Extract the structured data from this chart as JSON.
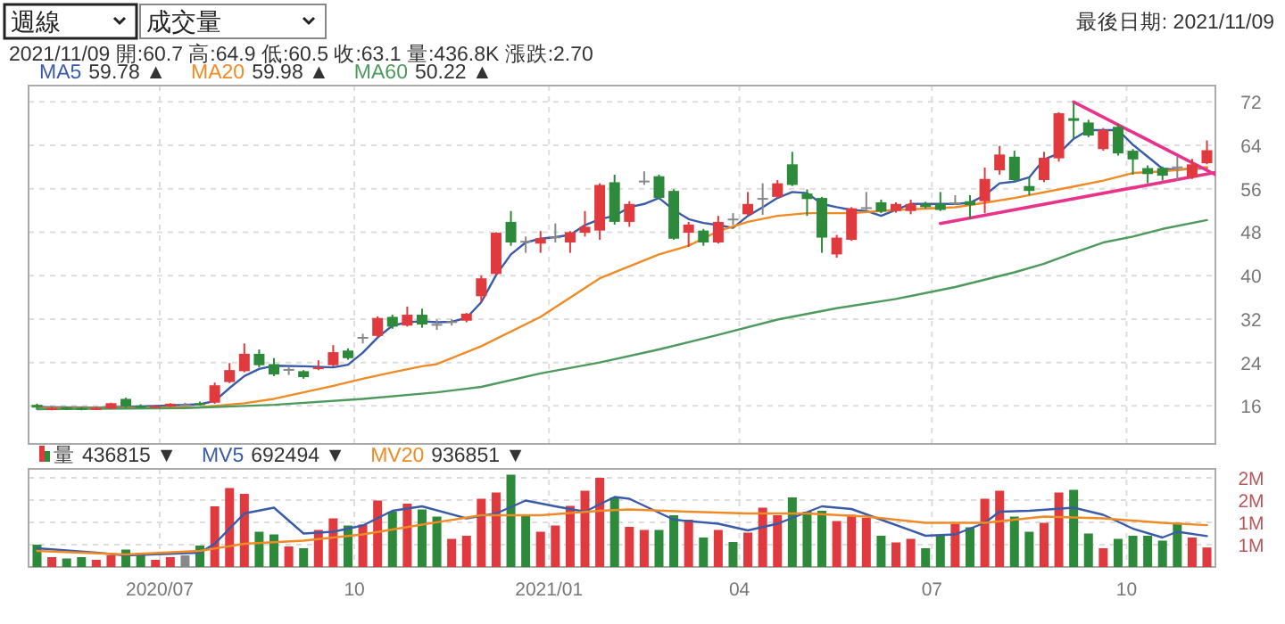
{
  "chart_data": [
    {
      "type": "candlestick",
      "annotations": [
        "週線",
        "成交量",
        "最後日期: 2021/11/09",
        "2021/11/09 開:60.7 高:64.9 低:60.5 收:63.1 量:436.8K 漲跌:2.70",
        "59.78 ▲",
        "59.98 ▲",
        "50.22 ▲"
      ],
      "x": [
        "2020-05-04",
        "2020-05-11",
        "2020-05-18",
        "2020-05-25",
        "2020-06-01",
        "2020-06-08",
        "2020-06-15",
        "2020-06-22",
        "2020-06-29",
        "2020-07-06",
        "2020-07-13",
        "2020-07-20",
        "2020-07-27",
        "2020-08-03",
        "2020-08-10",
        "2020-08-17",
        "2020-08-24",
        "2020-08-31",
        "2020-09-07",
        "2020-09-14",
        "2020-09-21",
        "2020-09-28",
        "2020-10-05",
        "2020-10-12",
        "2020-10-19",
        "2020-10-26",
        "2020-11-02",
        "2020-11-09",
        "2020-11-16",
        "2020-11-23",
        "2020-11-30",
        "2020-12-07",
        "2020-12-14",
        "2020-12-21",
        "2020-12-28",
        "2021-01-04",
        "2021-01-11",
        "2021-01-18",
        "2021-01-25",
        "2021-02-01",
        "2021-02-08",
        "2021-02-15",
        "2021-02-22",
        "2021-03-01",
        "2021-03-08",
        "2021-03-15",
        "2021-03-22",
        "2021-03-29",
        "2021-04-05",
        "2021-04-12",
        "2021-04-19",
        "2021-04-26",
        "2021-05-03",
        "2021-05-10",
        "2021-05-17",
        "2021-05-24",
        "2021-05-31",
        "2021-06-07",
        "2021-06-14",
        "2021-06-21",
        "2021-06-28",
        "2021-07-05",
        "2021-07-12",
        "2021-07-19",
        "2021-07-26",
        "2021-08-02",
        "2021-08-09",
        "2021-08-16",
        "2021-08-23",
        "2021-08-30",
        "2021-09-06",
        "2021-09-13",
        "2021-09-20",
        "2021-09-27",
        "2021-10-04",
        "2021-10-11",
        "2021-10-18",
        "2021-10-25",
        "2021-11-01",
        "2021-11-08"
      ],
      "ohlc": [
        [
          16.2,
          16.4,
          15.5,
          15.7
        ],
        [
          15.4,
          15.8,
          15.2,
          15.6
        ],
        [
          15.7,
          15.9,
          15.3,
          15.5
        ],
        [
          15.6,
          15.8,
          15.2,
          15.4
        ],
        [
          15.4,
          15.8,
          15.3,
          15.6
        ],
        [
          15.5,
          16.6,
          15.4,
          16.5
        ],
        [
          17.3,
          17.5,
          15.7,
          15.9
        ],
        [
          16.0,
          16.3,
          15.6,
          15.8
        ],
        [
          15.8,
          16.2,
          15.6,
          16.0
        ],
        [
          15.9,
          16.5,
          15.8,
          16.4
        ],
        [
          16.3,
          16.6,
          16.0,
          16.3
        ],
        [
          16.5,
          16.8,
          16.1,
          16.3
        ],
        [
          16.6,
          20.3,
          16.4,
          19.8
        ],
        [
          20.4,
          23.9,
          20.2,
          22.6
        ],
        [
          22.4,
          27.5,
          22.2,
          25.6
        ],
        [
          25.6,
          26.4,
          23.1,
          23.5
        ],
        [
          23.7,
          24.8,
          21.5,
          21.8
        ],
        [
          22.7,
          23.1,
          21.7,
          22.8
        ],
        [
          22.4,
          22.6,
          21.0,
          21.3
        ],
        [
          22.9,
          24.4,
          22.6,
          23.1
        ],
        [
          23.5,
          27.2,
          23.3,
          25.9
        ],
        [
          26.2,
          26.6,
          24.5,
          24.8
        ],
        [
          28.5,
          29.3,
          27.5,
          28.7
        ],
        [
          28.9,
          32.5,
          28.6,
          32.2
        ],
        [
          32.4,
          32.8,
          30.2,
          30.6
        ],
        [
          30.8,
          34.3,
          30.6,
          32.8
        ],
        [
          32.8,
          33.9,
          30.4,
          31.0
        ],
        [
          31.1,
          31.9,
          30.0,
          30.9
        ],
        [
          31.4,
          32.0,
          30.8,
          31.6
        ],
        [
          31.7,
          33.1,
          31.4,
          33.0
        ],
        [
          36.2,
          40.0,
          35.1,
          39.5
        ],
        [
          40.3,
          48.0,
          40.2,
          47.9
        ],
        [
          49.9,
          51.9,
          45.5,
          46.1
        ],
        [
          46.4,
          47.2,
          44.2,
          46.2
        ],
        [
          45.9,
          48.2,
          44.2,
          46.9
        ],
        [
          47.1,
          49.6,
          46.1,
          47.2
        ],
        [
          46.1,
          48.2,
          44.2,
          48.0
        ],
        [
          47.9,
          51.9,
          47.2,
          49.0
        ],
        [
          48.3,
          57.0,
          46.6,
          56.7
        ],
        [
          57.2,
          58.6,
          49.4,
          49.9
        ],
        [
          49.9,
          53.7,
          49.0,
          53.2
        ],
        [
          57.4,
          59.2,
          56.7,
          57.5
        ],
        [
          58.3,
          58.6,
          54.1,
          54.3
        ],
        [
          55.6,
          55.9,
          46.6,
          46.8
        ],
        [
          47.9,
          49.9,
          45.3,
          49.4
        ],
        [
          48.3,
          48.6,
          45.5,
          46.1
        ],
        [
          46.1,
          51.0,
          45.9,
          49.9
        ],
        [
          50.5,
          51.5,
          49.3,
          50.4
        ],
        [
          51.3,
          55.4,
          51.0,
          53.2
        ],
        [
          54.2,
          57.0,
          51.2,
          54.3
        ],
        [
          54.5,
          57.6,
          54.3,
          57.0
        ],
        [
          60.5,
          62.8,
          56.5,
          56.7
        ],
        [
          55.1,
          55.9,
          51.0,
          54.1
        ],
        [
          54.3,
          54.5,
          44.2,
          47.0
        ],
        [
          43.9,
          47.5,
          43.3,
          47.0
        ],
        [
          46.6,
          52.6,
          46.4,
          52.4
        ],
        [
          52.5,
          55.4,
          52.1,
          52.6
        ],
        [
          53.5,
          54.0,
          51.5,
          51.8
        ],
        [
          51.9,
          53.5,
          51.6,
          53.2
        ],
        [
          51.9,
          54.0,
          51.3,
          53.2
        ],
        [
          53.2,
          53.6,
          52.4,
          52.6
        ],
        [
          53.2,
          55.4,
          51.9,
          52.1
        ],
        [
          53.4,
          54.8,
          53.0,
          53.5
        ],
        [
          53.7,
          54.8,
          50.4,
          53.0
        ],
        [
          53.7,
          59.9,
          51.5,
          57.8
        ],
        [
          59.4,
          63.9,
          58.6,
          62.3
        ],
        [
          61.9,
          63.0,
          57.2,
          57.6
        ],
        [
          56.5,
          58.1,
          54.8,
          55.6
        ],
        [
          57.6,
          62.8,
          57.2,
          61.7
        ],
        [
          61.6,
          70.1,
          61.0,
          69.9
        ],
        [
          69.0,
          71.8,
          65.2,
          68.5
        ],
        [
          68.2,
          68.7,
          65.5,
          65.8
        ],
        [
          63.3,
          67.2,
          63.0,
          66.8
        ],
        [
          67.4,
          67.9,
          62.1,
          62.5
        ],
        [
          63.0,
          63.3,
          58.6,
          61.4
        ],
        [
          59.8,
          60.3,
          57.0,
          58.7
        ],
        [
          59.8,
          60.1,
          57.5,
          58.4
        ],
        [
          60.1,
          61.9,
          57.5,
          59.9
        ],
        [
          58.1,
          61.5,
          57.8,
          60.5
        ],
        [
          60.7,
          64.9,
          60.5,
          63.1
        ]
      ],
      "colors": [
        "#2c8a3a",
        "#e0393e",
        "#2c8a3a",
        "#2c8a3a",
        "#e0393e",
        "#e0393e",
        "#2c8a3a",
        "#2c8a3a",
        "#e0393e",
        "#e0393e",
        "#888888",
        "#2c8a3a",
        "#e0393e",
        "#e0393e",
        "#e0393e",
        "#2c8a3a",
        "#2c8a3a",
        "#888888",
        "#2c8a3a",
        "#e0393e",
        "#e0393e",
        "#2c8a3a",
        "#888888",
        "#e0393e",
        "#2c8a3a",
        "#e0393e",
        "#2c8a3a",
        "#888888",
        "#888888",
        "#e0393e",
        "#e0393e",
        "#e0393e",
        "#2c8a3a",
        "#888888",
        "#e0393e",
        "#888888",
        "#e0393e",
        "#e0393e",
        "#e0393e",
        "#2c8a3a",
        "#e0393e",
        "#888888",
        "#2c8a3a",
        "#2c8a3a",
        "#e0393e",
        "#2c8a3a",
        "#e0393e",
        "#888888",
        "#e0393e",
        "#888888",
        "#e0393e",
        "#2c8a3a",
        "#2c8a3a",
        "#2c8a3a",
        "#e0393e",
        "#e0393e",
        "#888888",
        "#2c8a3a",
        "#e0393e",
        "#e0393e",
        "#2c8a3a",
        "#2c8a3a",
        "#888888",
        "#2c8a3a",
        "#e0393e",
        "#e0393e",
        "#2c8a3a",
        "#2c8a3a",
        "#e0393e",
        "#e0393e",
        "#2c8a3a",
        "#2c8a3a",
        "#e0393e",
        "#2c8a3a",
        "#2c8a3a",
        "#2c8a3a",
        "#2c8a3a",
        "#888888",
        "#e0393e",
        "#e0393e"
      ],
      "series": [
        {
          "name": "MA5",
          "type": "line",
          "color": "#3a5ba8",
          "x": [
            "2020-05-04",
            "2020-06-01",
            "2020-06-29",
            "2020-07-20",
            "2020-07-27",
            "2020-08-03",
            "2020-08-10",
            "2020-08-17",
            "2020-08-24",
            "2020-09-07",
            "2020-09-21",
            "2020-09-28",
            "2020-10-05",
            "2020-10-12",
            "2020-10-19",
            "2020-10-26",
            "2020-11-02",
            "2020-11-09",
            "2020-11-16",
            "2020-11-23",
            "2020-11-30",
            "2020-12-07",
            "2020-12-14",
            "2020-12-21",
            "2020-12-28",
            "2021-01-04",
            "2021-01-11",
            "2021-01-18",
            "2021-01-25",
            "2021-02-01",
            "2021-02-08",
            "2021-02-15",
            "2021-02-22",
            "2021-03-01",
            "2021-03-08",
            "2021-03-15",
            "2021-03-22",
            "2021-03-29",
            "2021-04-05",
            "2021-04-12",
            "2021-04-19",
            "2021-04-26",
            "2021-05-03",
            "2021-05-10",
            "2021-05-17",
            "2021-05-24",
            "2021-05-31",
            "2021-06-07",
            "2021-06-14",
            "2021-06-21",
            "2021-06-28",
            "2021-07-05",
            "2021-07-12",
            "2021-07-19",
            "2021-07-26",
            "2021-08-02",
            "2021-08-09",
            "2021-08-16",
            "2021-08-23",
            "2021-08-30",
            "2021-09-06",
            "2021-09-13",
            "2021-09-20",
            "2021-09-27",
            "2021-10-04",
            "2021-10-11",
            "2021-10-18",
            "2021-10-25",
            "2021-11-01",
            "2021-11-08"
          ],
          "values": [
            15.8,
            15.7,
            16.0,
            16.3,
            16.9,
            19.3,
            21.5,
            22.8,
            23.4,
            23.3,
            23.1,
            23.6,
            25.8,
            28.6,
            30.8,
            31.4,
            31.6,
            31.4,
            31.5,
            32.2,
            35.1,
            40.1,
            43.9,
            46.1,
            46.8,
            47.1,
            47.5,
            49.3,
            50.4,
            51.0,
            52.6,
            53.2,
            54.3,
            52.1,
            50.4,
            49.7,
            49.3,
            48.8,
            51.0,
            52.6,
            54.3,
            55.4,
            55.2,
            53.2,
            52.6,
            52.1,
            51.9,
            51.0,
            52.1,
            53.2,
            53.2,
            53.2,
            53.2,
            53.4,
            54.8,
            57.0,
            57.3,
            58.1,
            61.4,
            62.5,
            65.2,
            66.8,
            66.8,
            66.8,
            64.1,
            61.9,
            59.7,
            59.5,
            59.7,
            59.78
          ]
        },
        {
          "name": "MA20",
          "type": "line",
          "color": "#f08a24",
          "x": [
            "2020-05-04",
            "2020-06-01",
            "2020-06-29",
            "2020-07-20",
            "2020-07-27",
            "2020-08-10",
            "2020-08-24",
            "2020-09-07",
            "2020-09-21",
            "2020-10-05",
            "2020-10-19",
            "2020-11-02",
            "2020-11-09",
            "2020-11-30",
            "2020-12-28",
            "2021-01-25",
            "2021-02-22",
            "2021-03-08",
            "2021-03-22",
            "2021-04-05",
            "2021-04-19",
            "2021-05-03",
            "2021-05-24",
            "2021-06-14",
            "2021-07-12",
            "2021-07-26",
            "2021-08-09",
            "2021-09-06",
            "2021-09-20",
            "2021-10-04",
            "2021-10-18",
            "2021-11-08"
          ],
          "values": [
            15.6,
            15.6,
            15.7,
            15.8,
            16.0,
            16.5,
            17.3,
            18.5,
            19.7,
            21.0,
            22.2,
            23.3,
            23.7,
            27.0,
            32.4,
            39.5,
            43.9,
            45.5,
            48.2,
            49.9,
            51.0,
            51.5,
            51.5,
            52.1,
            52.6,
            53.4,
            54.3,
            56.4,
            57.5,
            58.9,
            59.2,
            59.98
          ]
        },
        {
          "name": "MA60",
          "type": "line",
          "color": "#4e9a5e",
          "x": [
            "2020-05-04",
            "2020-07-13",
            "2020-08-24",
            "2020-10-05",
            "2020-11-09",
            "2020-11-30",
            "2020-12-28",
            "2021-01-25",
            "2021-02-22",
            "2021-03-22",
            "2021-04-19",
            "2021-05-17",
            "2021-06-14",
            "2021-07-12",
            "2021-08-09",
            "2021-08-23",
            "2021-09-06",
            "2021-09-20",
            "2021-10-04",
            "2021-10-18",
            "2021-11-08"
          ],
          "values": [
            15.4,
            15.6,
            16.2,
            17.3,
            18.5,
            19.5,
            22.0,
            24.0,
            26.4,
            29.1,
            31.9,
            34.0,
            35.7,
            37.9,
            40.6,
            42.2,
            44.2,
            46.1,
            47.2,
            48.6,
            50.22
          ]
        },
        {
          "type": "line",
          "color": "#e8338a",
          "x": [
            "2021-09-06",
            "2021-11-12"
          ],
          "values": [
            72.0,
            58.6
          ]
        },
        {
          "type": "line",
          "color": "#e8338a",
          "x": [
            "2021-07-05",
            "2021-11-12"
          ],
          "values": [
            49.6,
            59.0
          ]
        }
      ],
      "xlim": [
        "2020-04-30",
        "2021-11-12"
      ],
      "ylim": [
        9,
        75
      ],
      "yticks": [
        16,
        24,
        32,
        40,
        48,
        56,
        64,
        72
      ],
      "xticks": [
        {
          "value": "2020-07-01",
          "label": null
        },
        {
          "value": "2020-10-01",
          "label": null
        },
        {
          "value": "2021-01-01",
          "label": null
        },
        {
          "value": "2021-04-01",
          "label": null
        },
        {
          "value": "2021-07-01",
          "label": null
        },
        {
          "value": "2021-10-01",
          "label": null
        }
      ],
      "grid": true,
      "legend": "top left",
      "tick_labels": "y"
    },
    {
      "type": "bar",
      "annotations": [
        "436815 ▼",
        "692494 ▼",
        "936851 ▼"
      ],
      "x": [
        "2020-05-04",
        "2020-05-11",
        "2020-05-18",
        "2020-05-25",
        "2020-06-01",
        "2020-06-08",
        "2020-06-15",
        "2020-06-22",
        "2020-06-29",
        "2020-07-06",
        "2020-07-13",
        "2020-07-20",
        "2020-07-27",
        "2020-08-03",
        "2020-08-10",
        "2020-08-17",
        "2020-08-24",
        "2020-08-31",
        "2020-09-07",
        "2020-09-14",
        "2020-09-21",
        "2020-09-28",
        "2020-10-05",
        "2020-10-12",
        "2020-10-19",
        "2020-10-26",
        "2020-11-02",
        "2020-11-09",
        "2020-11-16",
        "2020-11-23",
        "2020-11-30",
        "2020-12-07",
        "2020-12-14",
        "2020-12-21",
        "2020-12-28",
        "2021-01-04",
        "2021-01-11",
        "2021-01-18",
        "2021-01-25",
        "2021-02-01",
        "2021-02-08",
        "2021-02-15",
        "2021-02-22",
        "2021-03-01",
        "2021-03-08",
        "2021-03-15",
        "2021-03-22",
        "2021-03-29",
        "2021-04-05",
        "2021-04-12",
        "2021-04-19",
        "2021-04-26",
        "2021-05-03",
        "2021-05-10",
        "2021-05-17",
        "2021-05-24",
        "2021-05-31",
        "2021-06-07",
        "2021-06-14",
        "2021-06-21",
        "2021-06-28",
        "2021-07-05",
        "2021-07-12",
        "2021-07-19",
        "2021-07-26",
        "2021-08-02",
        "2021-08-09",
        "2021-08-16",
        "2021-08-23",
        "2021-08-30",
        "2021-09-06",
        "2021-09-13",
        "2021-09-20",
        "2021-09-27",
        "2021-10-04",
        "2021-10-11",
        "2021-10-18",
        "2021-10-25",
        "2021-11-01",
        "2021-11-08"
      ],
      "series": [
        {
          "name": "量",
          "values": [
            500000,
            220000,
            190000,
            220000,
            160000,
            260000,
            390000,
            320000,
            160000,
            220000,
            260000,
            480000,
            1360000,
            1770000,
            1640000,
            790000,
            730000,
            460000,
            420000,
            830000,
            1090000,
            930000,
            950000,
            1490000,
            1240000,
            1420000,
            1290000,
            1130000,
            630000,
            700000,
            1530000,
            1670000,
            2070000,
            1160000,
            790000,
            930000,
            1370000,
            1710000,
            2000000,
            1560000,
            900000,
            830000,
            830000,
            1160000,
            1060000,
            660000,
            830000,
            560000,
            770000,
            1330000,
            1160000,
            1560000,
            1240000,
            1260000,
            1030000,
            1170000,
            1100000,
            700000,
            550000,
            630000,
            420000,
            700000,
            970000,
            890000,
            1530000,
            1710000,
            1130000,
            790000,
            990000,
            1670000,
            1730000,
            750000,
            420000,
            630000,
            700000,
            700000,
            590000,
            990000,
            660000,
            436815
          ],
          "colors": [
            "#2c8a3a",
            "#e0393e",
            "#2c8a3a",
            "#2c8a3a",
            "#e0393e",
            "#e0393e",
            "#2c8a3a",
            "#2c8a3a",
            "#e0393e",
            "#e0393e",
            "#888888",
            "#2c8a3a",
            "#e0393e",
            "#e0393e",
            "#e0393e",
            "#2c8a3a",
            "#2c8a3a",
            "#e0393e",
            "#2c8a3a",
            "#e0393e",
            "#e0393e",
            "#2c8a3a",
            "#e0393e",
            "#e0393e",
            "#2c8a3a",
            "#e0393e",
            "#2c8a3a",
            "#2c8a3a",
            "#e0393e",
            "#e0393e",
            "#e0393e",
            "#e0393e",
            "#2c8a3a",
            "#2c8a3a",
            "#e0393e",
            "#e0393e",
            "#e0393e",
            "#e0393e",
            "#e0393e",
            "#2c8a3a",
            "#e0393e",
            "#e0393e",
            "#2c8a3a",
            "#2c8a3a",
            "#e0393e",
            "#2c8a3a",
            "#e0393e",
            "#2c8a3a",
            "#e0393e",
            "#e0393e",
            "#e0393e",
            "#2c8a3a",
            "#2c8a3a",
            "#2c8a3a",
            "#e0393e",
            "#e0393e",
            "#e0393e",
            "#2c8a3a",
            "#e0393e",
            "#e0393e",
            "#2c8a3a",
            "#2c8a3a",
            "#e0393e",
            "#2c8a3a",
            "#e0393e",
            "#e0393e",
            "#2c8a3a",
            "#2c8a3a",
            "#e0393e",
            "#e0393e",
            "#2c8a3a",
            "#2c8a3a",
            "#e0393e",
            "#2c8a3a",
            "#2c8a3a",
            "#2c8a3a",
            "#2c8a3a",
            "#2c8a3a",
            "#e0393e",
            "#e0393e"
          ]
        },
        {
          "name": "MV5",
          "type": "line",
          "color": "#3a5ba8",
          "x": [
            "2020-05-04",
            "2020-06-01",
            "2020-06-15",
            "2020-07-20",
            "2020-07-27",
            "2020-08-10",
            "2020-08-24",
            "2020-09-07",
            "2020-09-21",
            "2020-10-05",
            "2020-10-19",
            "2020-11-02",
            "2020-11-23",
            "2020-12-07",
            "2020-12-21",
            "2021-01-04",
            "2021-01-18",
            "2021-02-01",
            "2021-02-08",
            "2021-03-01",
            "2021-03-22",
            "2021-04-05",
            "2021-04-19",
            "2021-05-10",
            "2021-05-24",
            "2021-06-07",
            "2021-06-28",
            "2021-07-12",
            "2021-07-26",
            "2021-08-02",
            "2021-08-16",
            "2021-09-06",
            "2021-09-20",
            "2021-10-04",
            "2021-10-18",
            "2021-10-25",
            "2021-11-08"
          ],
          "values": [
            420000,
            320000,
            260000,
            320000,
            520000,
            1200000,
            1330000,
            750000,
            790000,
            930000,
            1260000,
            1360000,
            1090000,
            1200000,
            1490000,
            1360000,
            1240000,
            1570000,
            1530000,
            1060000,
            970000,
            820000,
            970000,
            1360000,
            1300000,
            1060000,
            700000,
            730000,
            990000,
            1240000,
            1260000,
            1330000,
            1170000,
            860000,
            660000,
            790000,
            692494
          ]
        },
        {
          "name": "MV20",
          "type": "line",
          "color": "#f08a24",
          "x": [
            "2020-05-04",
            "2020-06-15",
            "2020-07-20",
            "2020-08-10",
            "2020-09-07",
            "2020-10-05",
            "2020-11-02",
            "2020-11-30",
            "2020-12-28",
            "2021-01-25",
            "2021-02-08",
            "2021-03-08",
            "2021-04-05",
            "2021-05-03",
            "2021-05-31",
            "2021-06-28",
            "2021-07-26",
            "2021-08-23",
            "2021-09-20",
            "2021-10-18",
            "2021-11-08"
          ],
          "values": [
            360000,
            280000,
            360000,
            520000,
            590000,
            730000,
            950000,
            1160000,
            1160000,
            1260000,
            1290000,
            1240000,
            1200000,
            1200000,
            1130000,
            990000,
            990000,
            1130000,
            1090000,
            990000,
            936851
          ]
        }
      ],
      "xlim": [
        "2020-04-30",
        "2021-11-12"
      ],
      "ylim": [
        0,
        2200000
      ],
      "yticks": [
        {
          "value": 500000,
          "label": "1M"
        },
        {
          "value": 1000000,
          "label": "1M"
        },
        {
          "value": 1500000,
          "label": "2M"
        },
        {
          "value": 2000000,
          "label": "2M"
        }
      ],
      "xticks": [
        {
          "value": "2020-07-01",
          "label": "2020/07"
        },
        {
          "value": "2020-10-01",
          "label": "10"
        },
        {
          "value": "2021-01-01",
          "label": "2021/01"
        },
        {
          "value": "2021-04-01",
          "label": "04"
        },
        {
          "value": "2021-07-01",
          "label": "07"
        },
        {
          "value": "2021-10-01",
          "label": "10"
        }
      ],
      "grid": true,
      "legend": "top left"
    }
  ]
}
